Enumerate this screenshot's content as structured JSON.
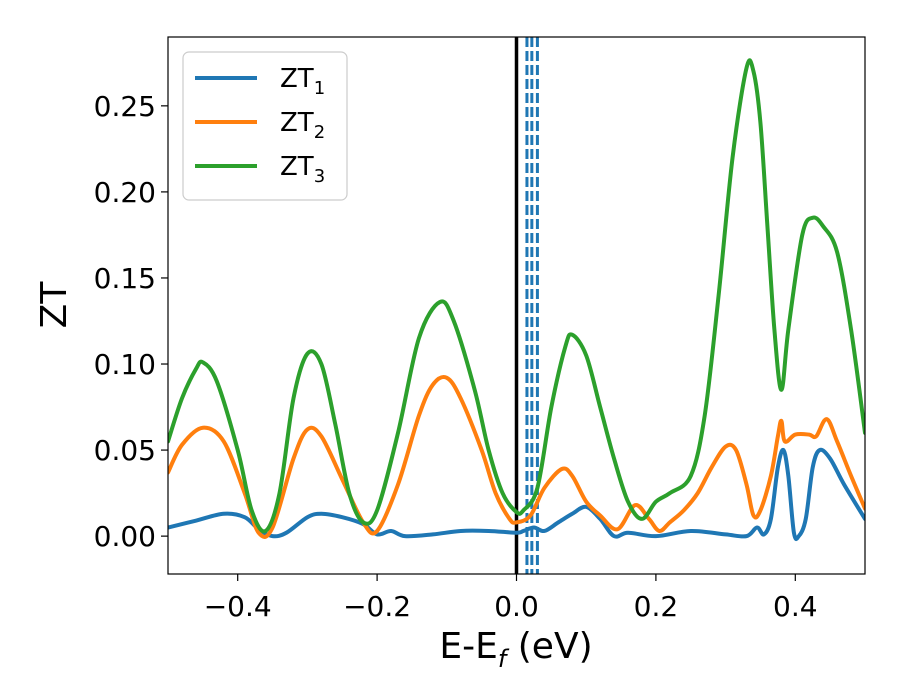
{
  "chart_data": {
    "type": "line",
    "xlabel": "E-E",
    "xlabel_sub": "f",
    "xlabel_unit": " (eV)",
    "ylabel": "ZT",
    "xlim": [
      -0.5,
      0.5
    ],
    "ylim": [
      -0.022,
      0.29
    ],
    "xticks": [
      -0.4,
      -0.2,
      0.0,
      0.2,
      0.4
    ],
    "xtick_labels": [
      "−0.4",
      "−0.2",
      "0.0",
      "0.2",
      "0.4"
    ],
    "yticks": [
      0.0,
      0.05,
      0.1,
      0.15,
      0.2,
      0.25
    ],
    "ytick_labels": [
      "0.00",
      "0.05",
      "0.10",
      "0.15",
      "0.20",
      "0.25"
    ],
    "grid": false,
    "legend_position": "top-left",
    "vertical_lines": [
      {
        "x": 0.0,
        "style": "solid",
        "color": "#000000"
      },
      {
        "x": 0.015,
        "style": "dashed",
        "color": "#1f77b4"
      },
      {
        "x": 0.022,
        "style": "dashed",
        "color": "#1f77b4"
      },
      {
        "x": 0.03,
        "style": "dashed",
        "color": "#1f77b4"
      }
    ],
    "series": [
      {
        "name": "ZT",
        "name_sub": "1",
        "color": "#1f77b4",
        "points": [
          [
            -0.5,
            0.005
          ],
          [
            -0.46,
            0.009
          ],
          [
            -0.42,
            0.013
          ],
          [
            -0.39,
            0.011
          ],
          [
            -0.37,
            0.004
          ],
          [
            -0.35,
            0.0
          ],
          [
            -0.33,
            0.002
          ],
          [
            -0.3,
            0.011
          ],
          [
            -0.28,
            0.013
          ],
          [
            -0.25,
            0.011
          ],
          [
            -0.22,
            0.007
          ],
          [
            -0.2,
            0.001
          ],
          [
            -0.18,
            0.003
          ],
          [
            -0.16,
            0.0
          ],
          [
            -0.12,
            0.001
          ],
          [
            -0.08,
            0.003
          ],
          [
            -0.04,
            0.003
          ],
          [
            0.0,
            0.002
          ],
          [
            0.01,
            0.003
          ],
          [
            0.025,
            0.005
          ],
          [
            0.04,
            0.003
          ],
          [
            0.06,
            0.008
          ],
          [
            0.08,
            0.013
          ],
          [
            0.1,
            0.017
          ],
          [
            0.12,
            0.01
          ],
          [
            0.14,
            0.0
          ],
          [
            0.16,
            0.002
          ],
          [
            0.2,
            0.0
          ],
          [
            0.25,
            0.003
          ],
          [
            0.3,
            0.001
          ],
          [
            0.33,
            0.0
          ],
          [
            0.345,
            0.005
          ],
          [
            0.355,
            0.001
          ],
          [
            0.365,
            0.01
          ],
          [
            0.375,
            0.04
          ],
          [
            0.383,
            0.05
          ],
          [
            0.39,
            0.035
          ],
          [
            0.398,
            0.002
          ],
          [
            0.405,
            0.0
          ],
          [
            0.415,
            0.01
          ],
          [
            0.425,
            0.04
          ],
          [
            0.435,
            0.05
          ],
          [
            0.45,
            0.045
          ],
          [
            0.47,
            0.03
          ],
          [
            0.5,
            0.01
          ]
        ]
      },
      {
        "name": "ZT",
        "name_sub": "2",
        "color": "#ff7f0e",
        "points": [
          [
            -0.5,
            0.037
          ],
          [
            -0.48,
            0.053
          ],
          [
            -0.45,
            0.063
          ],
          [
            -0.42,
            0.055
          ],
          [
            -0.39,
            0.025
          ],
          [
            -0.37,
            0.002
          ],
          [
            -0.35,
            0.005
          ],
          [
            -0.32,
            0.045
          ],
          [
            -0.3,
            0.062
          ],
          [
            -0.28,
            0.058
          ],
          [
            -0.25,
            0.033
          ],
          [
            -0.22,
            0.008
          ],
          [
            -0.2,
            0.003
          ],
          [
            -0.17,
            0.03
          ],
          [
            -0.14,
            0.07
          ],
          [
            -0.12,
            0.088
          ],
          [
            -0.1,
            0.092
          ],
          [
            -0.08,
            0.08
          ],
          [
            -0.05,
            0.05
          ],
          [
            -0.03,
            0.025
          ],
          [
            -0.01,
            0.01
          ],
          [
            0.0,
            0.008
          ],
          [
            0.02,
            0.012
          ],
          [
            0.04,
            0.028
          ],
          [
            0.065,
            0.039
          ],
          [
            0.08,
            0.035
          ],
          [
            0.1,
            0.02
          ],
          [
            0.12,
            0.012
          ],
          [
            0.145,
            0.004
          ],
          [
            0.17,
            0.018
          ],
          [
            0.19,
            0.01
          ],
          [
            0.205,
            0.003
          ],
          [
            0.22,
            0.008
          ],
          [
            0.24,
            0.015
          ],
          [
            0.26,
            0.025
          ],
          [
            0.28,
            0.04
          ],
          [
            0.3,
            0.052
          ],
          [
            0.315,
            0.05
          ],
          [
            0.33,
            0.03
          ],
          [
            0.34,
            0.012
          ],
          [
            0.35,
            0.015
          ],
          [
            0.365,
            0.035
          ],
          [
            0.375,
            0.058
          ],
          [
            0.38,
            0.067
          ],
          [
            0.385,
            0.055
          ],
          [
            0.4,
            0.059
          ],
          [
            0.42,
            0.059
          ],
          [
            0.43,
            0.058
          ],
          [
            0.445,
            0.068
          ],
          [
            0.46,
            0.055
          ],
          [
            0.48,
            0.035
          ],
          [
            0.5,
            0.016
          ]
        ]
      },
      {
        "name": "ZT",
        "name_sub": "3",
        "color": "#2ca02c",
        "points": [
          [
            -0.5,
            0.055
          ],
          [
            -0.48,
            0.08
          ],
          [
            -0.46,
            0.097
          ],
          [
            -0.45,
            0.101
          ],
          [
            -0.43,
            0.09
          ],
          [
            -0.4,
            0.05
          ],
          [
            -0.38,
            0.015
          ],
          [
            -0.36,
            0.003
          ],
          [
            -0.34,
            0.025
          ],
          [
            -0.32,
            0.08
          ],
          [
            -0.3,
            0.106
          ],
          [
            -0.28,
            0.1
          ],
          [
            -0.26,
            0.065
          ],
          [
            -0.24,
            0.025
          ],
          [
            -0.22,
            0.008
          ],
          [
            -0.2,
            0.015
          ],
          [
            -0.17,
            0.06
          ],
          [
            -0.14,
            0.115
          ],
          [
            -0.11,
            0.136
          ],
          [
            -0.09,
            0.125
          ],
          [
            -0.06,
            0.085
          ],
          [
            -0.04,
            0.05
          ],
          [
            -0.02,
            0.025
          ],
          [
            0.0,
            0.014
          ],
          [
            0.01,
            0.015
          ],
          [
            0.03,
            0.028
          ],
          [
            0.05,
            0.075
          ],
          [
            0.07,
            0.11
          ],
          [
            0.08,
            0.117
          ],
          [
            0.1,
            0.105
          ],
          [
            0.12,
            0.075
          ],
          [
            0.14,
            0.045
          ],
          [
            0.16,
            0.02
          ],
          [
            0.18,
            0.01
          ],
          [
            0.2,
            0.02
          ],
          [
            0.22,
            0.025
          ],
          [
            0.25,
            0.035
          ],
          [
            0.27,
            0.07
          ],
          [
            0.29,
            0.14
          ],
          [
            0.31,
            0.22
          ],
          [
            0.33,
            0.272
          ],
          [
            0.34,
            0.27
          ],
          [
            0.35,
            0.24
          ],
          [
            0.36,
            0.18
          ],
          [
            0.37,
            0.12
          ],
          [
            0.38,
            0.085
          ],
          [
            0.39,
            0.12
          ],
          [
            0.41,
            0.175
          ],
          [
            0.425,
            0.185
          ],
          [
            0.44,
            0.18
          ],
          [
            0.46,
            0.165
          ],
          [
            0.48,
            0.12
          ],
          [
            0.5,
            0.06
          ]
        ]
      }
    ]
  }
}
